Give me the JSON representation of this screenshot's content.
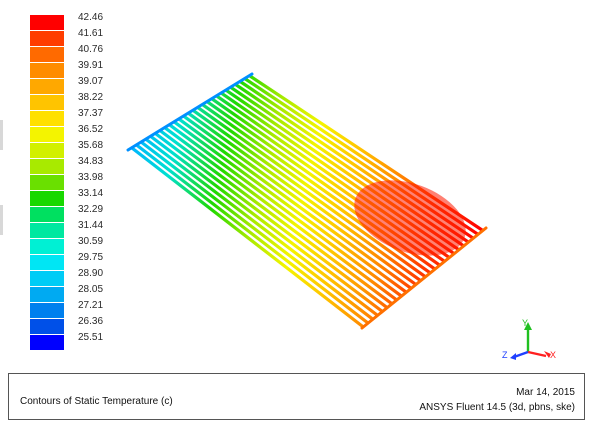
{
  "legend": {
    "title": "",
    "levels": [
      {
        "value": "42.46",
        "color": "#ff0000"
      },
      {
        "value": "41.61",
        "color": "#ff3d00"
      },
      {
        "value": "40.76",
        "color": "#ff6a00"
      },
      {
        "value": "39.91",
        "color": "#ff8c00"
      },
      {
        "value": "39.07",
        "color": "#ffa800"
      },
      {
        "value": "38.22",
        "color": "#ffc400"
      },
      {
        "value": "37.37",
        "color": "#ffe000"
      },
      {
        "value": "36.52",
        "color": "#f4f400"
      },
      {
        "value": "35.68",
        "color": "#d2f000"
      },
      {
        "value": "34.83",
        "color": "#a8ea00"
      },
      {
        "value": "33.98",
        "color": "#6ae000"
      },
      {
        "value": "33.14",
        "color": "#18d800"
      },
      {
        "value": "32.29",
        "color": "#00e060"
      },
      {
        "value": "31.44",
        "color": "#00e8a0"
      },
      {
        "value": "30.59",
        "color": "#00f0d4"
      },
      {
        "value": "29.75",
        "color": "#00e6f4"
      },
      {
        "value": "28.90",
        "color": "#00ccf6"
      },
      {
        "value": "28.05",
        "color": "#00aaf2"
      },
      {
        "value": "27.21",
        "color": "#0080ee"
      },
      {
        "value": "26.36",
        "color": "#0050e8"
      },
      {
        "value": "25.51",
        "color": "#0000ff"
      }
    ]
  },
  "axes": {
    "x_label": "X",
    "y_label": "Y",
    "z_label": "Z",
    "x_color": "#ff2020",
    "y_color": "#20c020",
    "z_color": "#2040ff"
  },
  "caption": {
    "title": "Contours of Static Temperature (c)",
    "date": "Mar 14, 2015",
    "software": "ANSYS Fluent 14.5 (3d, pbns, ske)"
  },
  "model": {
    "name": "heat-exchanger-tube-array",
    "tube_count": 26
  }
}
